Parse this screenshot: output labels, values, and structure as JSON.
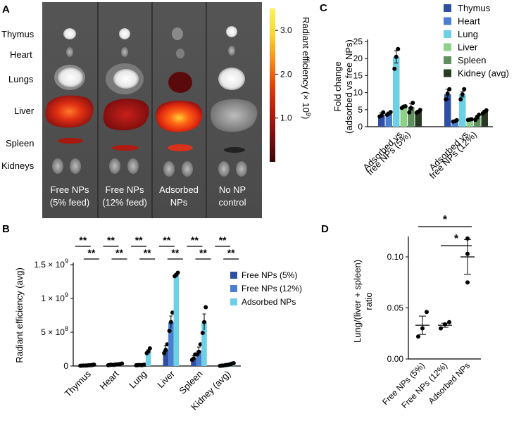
{
  "panels": {
    "a": "A",
    "b": "B",
    "c": "C",
    "d": "D"
  },
  "panel_a": {
    "organ_labels": [
      "Thymus",
      "Heart",
      "Lungs",
      "Liver",
      "Spleen",
      "Kidneys"
    ],
    "groups": [
      {
        "line1": "Free NPs",
        "line2": "(5% feed)"
      },
      {
        "line1": "Free NPs",
        "line2": "(12% feed)"
      },
      {
        "line1": "Adsorbed",
        "line2": "NPs"
      },
      {
        "line1": "No NP",
        "line2": "control"
      }
    ],
    "colorbar": {
      "label": "Radiant efficiency (× 10",
      "exponent": "9",
      "label_end": ")",
      "ticks": [
        {
          "label": "3.0",
          "value": 3.0
        },
        {
          "label": "2.0",
          "value": 2.0
        },
        {
          "label": "1.0",
          "value": 1.0
        }
      ],
      "max": 3.5,
      "colors": [
        "#3a0707",
        "#7a1010",
        "#b61c0e",
        "#e2410a",
        "#f5901c",
        "#f8d730",
        "#fbf15a"
      ]
    }
  },
  "chart_data": [
    {
      "id": "B",
      "type": "bar",
      "title": "",
      "ylabel": "Radiant efficiency (avg)",
      "xlabel": "",
      "categories": [
        "Thymus",
        "Heart",
        "Lung",
        "Liver",
        "Spleen",
        "Kidney (avg)"
      ],
      "ylim": [
        0,
        1500000000
      ],
      "yticks": [
        {
          "value": 0,
          "label": "0"
        },
        {
          "value": 500000000,
          "mant": "5 × 10",
          "exp": "8"
        },
        {
          "value": 1000000000,
          "mant": "1 × 10",
          "exp": "9"
        },
        {
          "value": 1500000000,
          "mant": "1.5 × 10",
          "exp": "9"
        }
      ],
      "series": [
        {
          "name": "Free NPs (5%)",
          "color": "#2e4fa3",
          "values": [
            5000000,
            15000000,
            12000000,
            240000000,
            120000000,
            5000000
          ],
          "errors": [
            2000000,
            3000000,
            3000000,
            60000000,
            30000000,
            2000000
          ],
          "points": [
            [
              4000000,
              5000000,
              7000000
            ],
            [
              12000000,
              15000000,
              18000000
            ],
            [
              10000000,
              12000000,
              15000000
            ],
            [
              190000000,
              240000000,
              320000000
            ],
            [
              90000000,
              110000000,
              170000000
            ],
            [
              3000000,
              5000000,
              7000000
            ]
          ]
        },
        {
          "name": "Free NPs (12%)",
          "color": "#4a7fd0",
          "values": [
            8000000,
            20000000,
            15000000,
            650000000,
            230000000,
            15000000
          ],
          "errors": [
            3000000,
            4000000,
            4000000,
            90000000,
            50000000,
            3000000
          ],
          "points": [
            [
              6000000,
              8000000,
              11000000
            ],
            [
              15000000,
              20000000,
              24000000
            ],
            [
              12000000,
              15000000,
              18000000
            ],
            [
              520000000,
              650000000,
              790000000
            ],
            [
              170000000,
              210000000,
              320000000
            ],
            [
              12000000,
              15000000,
              18000000
            ]
          ]
        },
        {
          "name": "Adsorbed NPs",
          "color": "#6cd0e6",
          "values": [
            15000000,
            30000000,
            220000000,
            1350000000,
            650000000,
            35000000
          ],
          "errors": [
            4000000,
            6000000,
            20000000,
            20000000,
            120000000,
            6000000
          ],
          "points": [
            [
              12000000,
              15000000,
              19000000
            ],
            [
              25000000,
              30000000,
              36000000
            ],
            [
              190000000,
              215000000,
              260000000
            ],
            [
              1330000000,
              1350000000,
              1380000000
            ],
            [
              490000000,
              650000000,
              870000000
            ],
            [
              28000000,
              35000000,
              42000000
            ]
          ]
        }
      ],
      "significance": {
        "row1": [
          "**",
          "**",
          "**",
          "**",
          "**",
          "**"
        ],
        "row2": [
          "**",
          "**",
          "**",
          "**",
          "**",
          "**"
        ]
      },
      "legend_position": "right"
    },
    {
      "id": "C",
      "type": "bar",
      "title": "",
      "ylabel_line1": "Fold change",
      "ylabel_line2": "(adsorbed vs free NPs)",
      "xlabel": "",
      "categories": [
        {
          "line1": "Adsorbed vs",
          "line2": "free NPs (5%)"
        },
        {
          "line1": "Adsorbed vs",
          "line2": "free NPs (12%)"
        }
      ],
      "ylim": [
        0,
        25
      ],
      "yticks": [
        {
          "value": 0,
          "label": "0"
        },
        {
          "value": 5,
          "label": "5"
        },
        {
          "value": 10,
          "label": "10"
        },
        {
          "value": 15,
          "label": "15"
        },
        {
          "value": 20,
          "label": "20"
        },
        {
          "value": 25,
          "label": "25"
        }
      ],
      "series": [
        {
          "name": "Thymus",
          "color": "#2e4fa3",
          "values": [
            3.5,
            9.5
          ],
          "errors": [
            0.6,
            1.5
          ],
          "points": [
            [
              3.0,
              3.3,
              4.2
            ],
            [
              8.0,
              9.7,
              11.0
            ]
          ]
        },
        {
          "name": "Heart",
          "color": "#4a7fd0",
          "values": [
            4.0,
            1.7
          ],
          "errors": [
            0.3,
            0.2
          ],
          "points": [
            [
              3.5,
              3.8,
              4.3
            ],
            [
              1.5,
              1.6,
              1.9
            ]
          ]
        },
        {
          "name": "Lung",
          "color": "#6cd0e6",
          "values": [
            20.5,
            9.5
          ],
          "errors": [
            1.8,
            0.8
          ],
          "points": [
            [
              17.0,
              20.5,
              22.8
            ],
            [
              8.0,
              9.5,
              11.0
            ]
          ]
        },
        {
          "name": "Liver",
          "color": "#8ed28a",
          "values": [
            5.8,
            2.1
          ],
          "errors": [
            0.2,
            0.1
          ],
          "points": [
            [
              5.5,
              5.9,
              6.0
            ],
            [
              2.0,
              2.1,
              2.2
            ]
          ]
        },
        {
          "name": "Spleen",
          "color": "#5e8f5e",
          "values": [
            5.8,
            2.8
          ],
          "errors": [
            1.0,
            0.5
          ],
          "points": [
            [
              4.2,
              5.5,
              7.0
            ],
            [
              2.0,
              2.8,
              3.5
            ]
          ]
        },
        {
          "name": "Kidney (avg)",
          "color": "#283a24",
          "values": [
            4.5,
            4.4
          ],
          "errors": [
            0.3,
            0.3
          ],
          "points": [
            [
              4.1,
              4.4,
              4.9
            ],
            [
              3.9,
              4.4,
              4.8
            ]
          ]
        }
      ],
      "legend_position": "top-right"
    },
    {
      "id": "D",
      "type": "scatter",
      "title": "",
      "ylabel_line1": "Lung/(liver + spleen)",
      "ylabel_line2": "ratio",
      "xlabel": "",
      "categories": [
        "Free NPs (5%)",
        "Free NPs (12%)",
        "Adsorbed NPs"
      ],
      "ylim": [
        0,
        0.12
      ],
      "yticks": [
        {
          "value": 0,
          "label": "0.00"
        },
        {
          "value": 0.05,
          "label": "0.05"
        },
        {
          "value": 0.1,
          "label": "0.10"
        }
      ],
      "points": [
        [
          0.022,
          0.03,
          0.046
        ],
        [
          0.03,
          0.034,
          0.036
        ],
        [
          0.075,
          0.103,
          0.118
        ]
      ],
      "means": [
        0.033,
        0.033,
        0.1
      ],
      "errors": [
        0.009,
        0.002,
        0.017
      ],
      "significance": [
        {
          "from": 0,
          "to": 2,
          "label": "*"
        },
        {
          "from": 1,
          "to": 2,
          "label": "*"
        }
      ]
    }
  ]
}
